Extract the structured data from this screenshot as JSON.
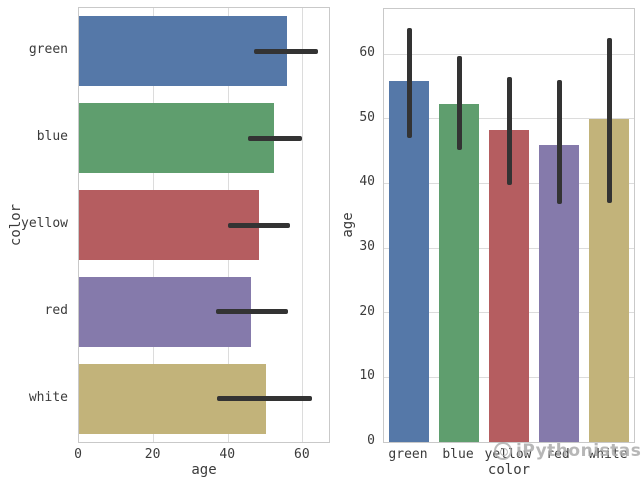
{
  "watermark": {
    "text": "iPythonistas",
    "logo": "circle-logo-icon",
    "color": "#aaaaaa"
  },
  "style": {
    "grid_color": "#dcdcdc",
    "spine_color": "#c9c9c9",
    "errorbar_color": "#333333",
    "text_color": "#3b3b3b",
    "background": "#ffffff"
  },
  "chart_data": [
    {
      "type": "bar",
      "orientation": "horizontal",
      "title": "",
      "xlabel": "age",
      "ylabel": "color",
      "categories": [
        "green",
        "blue",
        "yellow",
        "red",
        "white"
      ],
      "values": [
        55.8,
        52.3,
        48.2,
        46.0,
        50.0
      ],
      "error_low": [
        47.0,
        45.2,
        39.8,
        36.8,
        37.0
      ],
      "error_high": [
        64.0,
        59.8,
        56.5,
        56.0,
        62.5
      ],
      "bar_colors": [
        "#5578a8",
        "#5f9e6e",
        "#b55d60",
        "#857aab",
        "#c2b37a"
      ],
      "xlim": [
        0,
        67
      ],
      "xticks": [
        0,
        20,
        40,
        60
      ],
      "grid": true,
      "legend": false
    },
    {
      "type": "bar",
      "orientation": "vertical",
      "title": "",
      "xlabel": "color",
      "ylabel": "age",
      "categories": [
        "green",
        "blue",
        "yellow",
        "red",
        "white"
      ],
      "values": [
        55.8,
        52.3,
        48.2,
        46.0,
        50.0
      ],
      "error_low": [
        47.0,
        45.2,
        39.8,
        36.8,
        37.0
      ],
      "error_high": [
        64.0,
        59.8,
        56.5,
        56.0,
        62.5
      ],
      "bar_colors": [
        "#5578a8",
        "#5f9e6e",
        "#b55d60",
        "#857aab",
        "#c2b37a"
      ],
      "ylim": [
        0,
        67
      ],
      "yticks": [
        0,
        10,
        20,
        30,
        40,
        50,
        60
      ],
      "grid": true,
      "legend": false
    }
  ]
}
